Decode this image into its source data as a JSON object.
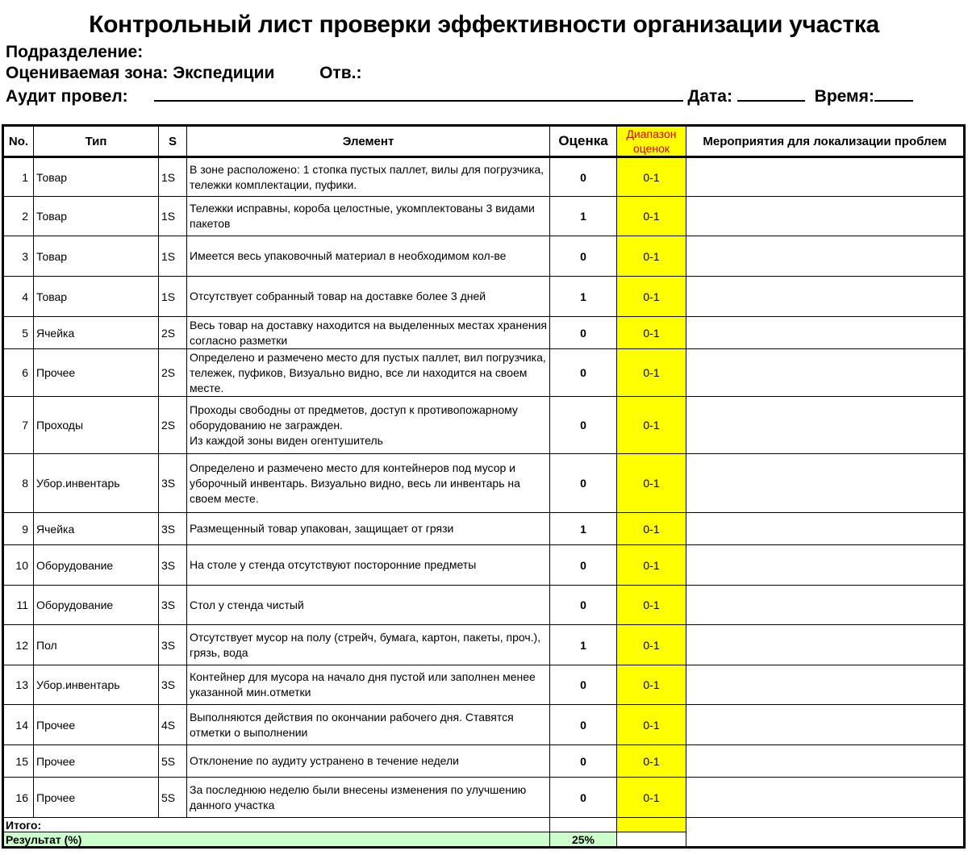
{
  "title": "Контрольный лист проверки эффективности организации участка",
  "meta": {
    "division_label": "Подразделение:",
    "zone_label": "Оцениваемая зона:",
    "zone_value": "Экспедиции",
    "resp_label": "Отв.:",
    "auditor_label": "Аудит провел:",
    "date_label": "Дата:",
    "time_label": "Время:"
  },
  "table": {
    "headers": [
      "No.",
      "Тип",
      "S",
      "Элемент",
      "Оценка",
      "Диапазон оценок",
      "Мероприятия для локализации проблем"
    ],
    "rows": [
      {
        "no": "1",
        "type": "Товар",
        "s": "1S",
        "element": "В зоне расположено: 1 стопка пустых паллет, вилы для погрузчика, тележки комплектации, пуфики.",
        "score": "0",
        "range": "0-1",
        "action": ""
      },
      {
        "no": "2",
        "type": "Товар",
        "s": "1S",
        "element": "Тележки исправны, короба целостные, укомплектованы 3 видами пакетов",
        "score": "1",
        "range": "0-1",
        "action": ""
      },
      {
        "no": "3",
        "type": "Товар",
        "s": "1S",
        "element": "Имеется весь упаковочный материал в необходимом кол-ве",
        "score": "0",
        "range": "0-1",
        "action": ""
      },
      {
        "no": "4",
        "type": "Товар",
        "s": "1S",
        "element": "Отсутствует собранный товар на доставке более 3 дней",
        "score": "1",
        "range": "0-1",
        "action": ""
      },
      {
        "no": "5",
        "type": "Ячейка",
        "s": "2S",
        "element": "Весь товар на доставку находится на выделенных местах хранения согласно разметки",
        "score": "0",
        "range": "0-1",
        "action": ""
      },
      {
        "no": "6",
        "type": "Прочее",
        "s": "2S",
        "element": "Определено и размечено место для пустых паллет, вил погрузчика, тележек, пуфиков, Визуально видно, все ли находится на своем месте.",
        "score": "0",
        "range": "0-1",
        "action": ""
      },
      {
        "no": "7",
        "type": "Проходы",
        "s": "2S",
        "element": "Проходы свободны от предметов, доступ к противопожарному оборудованию не загражден.\nИз каждой зоны виден огентушитель",
        "score": "0",
        "range": "0-1",
        "action": ""
      },
      {
        "no": "8",
        "type": "Убор.инвентарь",
        "s": "3S",
        "element": "Определено и размечено место для контейнеров под мусор и уборочный инвентарь. Визуально видно, весь ли инвентарь на своем месте.",
        "score": "0",
        "range": "0-1",
        "action": ""
      },
      {
        "no": "9",
        "type": "Ячейка",
        "s": "3S",
        "element": "Размещенный товар упакован, защищает от грязи",
        "score": "1",
        "range": "0-1",
        "action": ""
      },
      {
        "no": "10",
        "type": "Оборудование",
        "s": "3S",
        "element": "На столе у стенда отсутствуют посторонние предметы",
        "score": "0",
        "range": "0-1",
        "action": ""
      },
      {
        "no": "11",
        "type": "Оборудование",
        "s": "3S",
        "element": "Стол у стенда чистый",
        "score": "0",
        "range": "0-1",
        "action": ""
      },
      {
        "no": "12",
        "type": "Пол",
        "s": "3S",
        "element": "Отсутствует мусор на полу (стрейч, бумага, картон, пакеты, проч.), грязь, вода",
        "score": "1",
        "range": "0-1",
        "action": ""
      },
      {
        "no": "13",
        "type": "Убор.инвентарь",
        "s": "3S",
        "element": "Контейнер для мусора на начало дня пустой или заполнен менее указанной мин.отметки",
        "score": "0",
        "range": "0-1",
        "action": ""
      },
      {
        "no": "14",
        "type": "Прочее",
        "s": "4S",
        "element": "Выполняются действия по окончании рабочего дня. Ставятся отметки о выполнении",
        "score": "0",
        "range": "0-1",
        "action": ""
      },
      {
        "no": "15",
        "type": "Прочее",
        "s": "5S",
        "element": "Отклонение по аудиту устранено в течение недели",
        "score": "0",
        "range": "0-1",
        "action": ""
      },
      {
        "no": "16",
        "type": "Прочее",
        "s": "5S",
        "element": "За последнюю неделю были внесены изменения по улучшению данного участка",
        "score": "0",
        "range": "0-1",
        "action": ""
      }
    ],
    "total_label": "Итого:",
    "result_label": "Результат (%)",
    "result_value": "25%"
  },
  "colors": {
    "range_fill": "#ffff00",
    "result_fill": "#ccffcc",
    "range_header_text": "#e00000"
  }
}
